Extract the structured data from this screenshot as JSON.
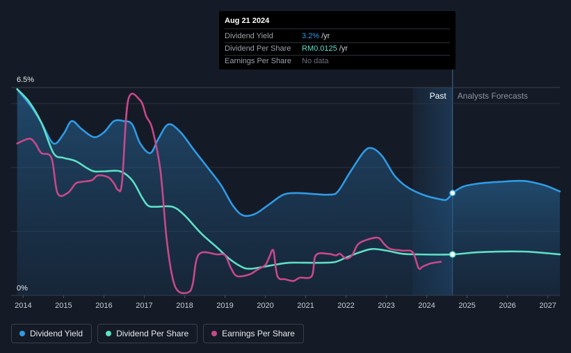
{
  "colors": {
    "background": "#151b26",
    "dividend_yield": "#2f9be6",
    "dividend_per_share": "#5ee0c6",
    "earnings_per_share": "#c9488a",
    "grid": "#2c3340",
    "past_highlight": "#1d3a57"
  },
  "tooltip": {
    "date": "Aug 21 2024",
    "rows": [
      {
        "key": "Dividend Yield",
        "value": "3.2%",
        "unit": "/yr",
        "color": "#2f9be6"
      },
      {
        "key": "Dividend Per Share",
        "value": "RM0.0125",
        "unit": "/yr",
        "color": "#5ee0c6"
      },
      {
        "key": "Earnings Per Share",
        "value": "No data",
        "unit": "",
        "color": "#6b717b"
      }
    ]
  },
  "regions": {
    "past_label": "Past",
    "forecast_label": "Analysts Forecasts"
  },
  "legend": [
    {
      "label": "Dividend Yield",
      "color": "#2f9be6"
    },
    {
      "label": "Dividend Per Share",
      "color": "#5ee0c6"
    },
    {
      "label": "Earnings Per Share",
      "color": "#c9488a"
    }
  ],
  "chart_data": {
    "type": "line",
    "y_tick_labels": [
      {
        "value": 6.5,
        "label": "6.5%"
      },
      {
        "value": 0,
        "label": "0%"
      }
    ],
    "ylim": [
      0,
      6.5
    ],
    "xlim": [
      2013.7,
      2027.3
    ],
    "x_tick_labels": [
      "2014",
      "2015",
      "2016",
      "2017",
      "2018",
      "2019",
      "2020",
      "2021",
      "2022",
      "2023",
      "2024",
      "2025",
      "2026",
      "2027"
    ],
    "grid": true,
    "past_boundary": 2024.64,
    "past_highlight_start": 2023.65,
    "series": [
      {
        "name": "Dividend Yield",
        "color": "#2f9be6",
        "area": true,
        "points": [
          [
            2013.85,
            6.45
          ],
          [
            2014.2,
            5.9
          ],
          [
            2014.45,
            5.4
          ],
          [
            2014.75,
            4.75
          ],
          [
            2015.0,
            5.05
          ],
          [
            2015.2,
            5.45
          ],
          [
            2015.45,
            5.2
          ],
          [
            2015.75,
            4.95
          ],
          [
            2016.0,
            5.1
          ],
          [
            2016.25,
            5.45
          ],
          [
            2016.5,
            5.45
          ],
          [
            2016.7,
            5.35
          ],
          [
            2016.9,
            4.75
          ],
          [
            2017.15,
            4.45
          ],
          [
            2017.35,
            4.9
          ],
          [
            2017.6,
            5.35
          ],
          [
            2017.9,
            5.1
          ],
          [
            2018.2,
            4.6
          ],
          [
            2018.6,
            3.95
          ],
          [
            2018.9,
            3.45
          ],
          [
            2019.2,
            2.8
          ],
          [
            2019.45,
            2.5
          ],
          [
            2019.75,
            2.55
          ],
          [
            2020.1,
            2.85
          ],
          [
            2020.45,
            3.15
          ],
          [
            2020.8,
            3.2
          ],
          [
            2021.2,
            3.17
          ],
          [
            2021.6,
            3.15
          ],
          [
            2021.8,
            3.25
          ],
          [
            2022.1,
            3.85
          ],
          [
            2022.45,
            4.5
          ],
          [
            2022.65,
            4.6
          ],
          [
            2022.9,
            4.35
          ],
          [
            2023.2,
            3.75
          ],
          [
            2023.5,
            3.4
          ],
          [
            2023.9,
            3.15
          ],
          [
            2024.35,
            3.0
          ],
          [
            2024.5,
            3.0
          ],
          [
            2024.64,
            3.2
          ]
        ]
      },
      {
        "name": "Dividend Yield forecast",
        "color": "#2f9be6",
        "area": true,
        "points": [
          [
            2024.64,
            3.2
          ],
          [
            2024.9,
            3.4
          ],
          [
            2025.3,
            3.5
          ],
          [
            2025.8,
            3.55
          ],
          [
            2026.4,
            3.58
          ],
          [
            2026.9,
            3.45
          ],
          [
            2027.3,
            3.25
          ]
        ]
      },
      {
        "name": "Dividend Per Share",
        "color": "#5ee0c6",
        "area": false,
        "points": [
          [
            2013.85,
            6.45
          ],
          [
            2014.15,
            6.05
          ],
          [
            2014.45,
            5.4
          ],
          [
            2014.75,
            4.45
          ],
          [
            2015.0,
            4.3
          ],
          [
            2015.3,
            4.2
          ],
          [
            2015.7,
            3.9
          ],
          [
            2016.0,
            3.88
          ],
          [
            2016.4,
            3.88
          ],
          [
            2016.7,
            3.6
          ],
          [
            2016.95,
            3.05
          ],
          [
            2017.1,
            2.8
          ],
          [
            2017.3,
            2.77
          ],
          [
            2017.7,
            2.77
          ],
          [
            2018.0,
            2.5
          ],
          [
            2018.4,
            1.95
          ],
          [
            2018.8,
            1.5
          ],
          [
            2019.1,
            1.15
          ],
          [
            2019.4,
            0.9
          ],
          [
            2019.6,
            0.83
          ],
          [
            2019.9,
            0.88
          ],
          [
            2020.3,
            0.97
          ],
          [
            2020.6,
            1.02
          ],
          [
            2021.0,
            1.02
          ],
          [
            2021.5,
            1.02
          ],
          [
            2021.75,
            1.05
          ],
          [
            2022.0,
            1.18
          ],
          [
            2022.35,
            1.35
          ],
          [
            2022.65,
            1.45
          ],
          [
            2023.0,
            1.4
          ],
          [
            2023.4,
            1.3
          ],
          [
            2023.8,
            1.28
          ],
          [
            2024.64,
            1.28
          ],
          [
            2025.3,
            1.35
          ],
          [
            2026.4,
            1.37
          ],
          [
            2027.3,
            1.28
          ]
        ]
      },
      {
        "name": "Earnings Per Share",
        "color": "#c9488a",
        "area": false,
        "points": [
          [
            2013.85,
            4.75
          ],
          [
            2014.15,
            4.9
          ],
          [
            2014.3,
            4.75
          ],
          [
            2014.45,
            4.45
          ],
          [
            2014.7,
            4.3
          ],
          [
            2014.85,
            3.2
          ],
          [
            2015.1,
            3.2
          ],
          [
            2015.3,
            3.5
          ],
          [
            2015.45,
            3.55
          ],
          [
            2015.7,
            3.6
          ],
          [
            2015.85,
            3.75
          ],
          [
            2016.1,
            3.7
          ],
          [
            2016.25,
            3.5
          ],
          [
            2016.35,
            3.3
          ],
          [
            2016.45,
            3.55
          ],
          [
            2016.6,
            6.1
          ],
          [
            2016.9,
            6.1
          ],
          [
            2017.05,
            5.6
          ],
          [
            2017.2,
            5.2
          ],
          [
            2017.4,
            3.9
          ],
          [
            2017.55,
            1.8
          ],
          [
            2017.7,
            0.55
          ],
          [
            2017.85,
            0.12
          ],
          [
            2018.1,
            0.1
          ],
          [
            2018.2,
            0.35
          ],
          [
            2018.35,
            1.28
          ],
          [
            2018.8,
            1.28
          ],
          [
            2019.0,
            1.25
          ],
          [
            2019.15,
            0.85
          ],
          [
            2019.3,
            0.6
          ],
          [
            2019.6,
            0.65
          ],
          [
            2019.8,
            0.8
          ],
          [
            2020.0,
            0.95
          ],
          [
            2020.1,
            1.2
          ],
          [
            2020.2,
            1.4
          ],
          [
            2020.3,
            0.6
          ],
          [
            2020.5,
            0.5
          ],
          [
            2020.7,
            0.45
          ],
          [
            2020.85,
            0.55
          ],
          [
            2021.15,
            0.6
          ],
          [
            2021.25,
            1.25
          ],
          [
            2021.55,
            1.3
          ],
          [
            2021.75,
            1.25
          ],
          [
            2021.85,
            1.3
          ],
          [
            2022.0,
            1.15
          ],
          [
            2022.15,
            1.25
          ],
          [
            2022.3,
            1.6
          ],
          [
            2022.55,
            1.75
          ],
          [
            2022.8,
            1.8
          ],
          [
            2022.95,
            1.6
          ],
          [
            2023.1,
            1.45
          ],
          [
            2023.4,
            1.4
          ],
          [
            2023.65,
            1.35
          ],
          [
            2023.8,
            0.85
          ],
          [
            2023.9,
            0.9
          ],
          [
            2024.1,
            1.0
          ],
          [
            2024.35,
            1.05
          ]
        ]
      }
    ],
    "markers": [
      {
        "series": "Dividend Yield",
        "x": 2024.64,
        "y": 3.2
      },
      {
        "series": "Dividend Per Share",
        "x": 2024.64,
        "y": 1.28
      }
    ]
  }
}
